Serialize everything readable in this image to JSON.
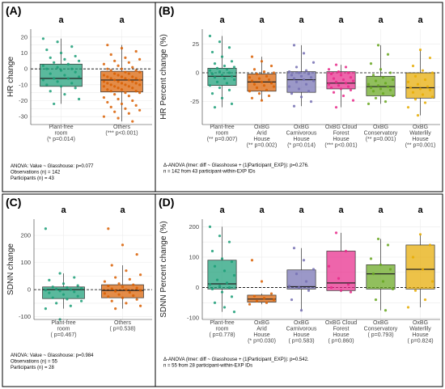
{
  "chart_data": [
    {
      "panel": "(A)",
      "type": "box",
      "ylabel": "HR change",
      "ylim": [
        -35,
        25
      ],
      "yticks": [
        -30,
        -20,
        -10,
        0,
        10,
        20
      ],
      "reference_line": 0,
      "categories": [
        {
          "name": "Plant-free room",
          "lines": [
            "Plant-free",
            "room"
          ],
          "p_label": "(* p=0.014)",
          "sig_letter": "a",
          "color": "#1b9e77",
          "q1": -11,
          "median": -6,
          "q3": 3,
          "whisker_low": -22,
          "whisker_high": 19,
          "points": [
            19,
            17,
            14,
            12,
            10,
            8,
            7,
            6,
            5,
            4,
            3,
            2,
            1,
            0,
            0,
            -1,
            -2,
            -3,
            -4,
            -5,
            -6,
            -6,
            -7,
            -8,
            -9,
            -10,
            -11,
            -12,
            -14,
            -16,
            -19,
            -22
          ]
        },
        {
          "name": "Others",
          "lines": [
            "Others"
          ],
          "p_label": "(*** p<0.001)",
          "sig_letter": "a",
          "color": "#d95f02",
          "q1": -14.5,
          "median": -7,
          "q3": -1.5,
          "whisker_low": -33,
          "whisker_high": 15,
          "points": [
            15,
            13,
            11,
            9,
            7,
            6,
            5,
            4,
            3,
            2,
            1,
            0,
            0,
            -1,
            -1,
            -2,
            -2,
            -3,
            -3,
            -4,
            -4,
            -5,
            -5,
            -5,
            -6,
            -6,
            -6,
            -7,
            -7,
            -7,
            -8,
            -8,
            -8,
            -9,
            -9,
            -9,
            -10,
            -10,
            -10,
            -11,
            -11,
            -11,
            -12,
            -12,
            -13,
            -13,
            -14,
            -14,
            -15,
            -15,
            -16,
            -17,
            -18,
            -19,
            -20,
            -21,
            -22,
            -23,
            -24,
            -25,
            -26,
            -27,
            -28,
            -30,
            -31,
            -33
          ]
        }
      ],
      "annotation": [
        "ANOVA: Value ~ Glasshouse: p=0.077",
        "Observations (n) = 142",
        "Participants (n) = 43"
      ]
    },
    {
      "panel": "(B)",
      "type": "box",
      "ylabel": "HR Percent change (%)",
      "ylim": [
        -45,
        38
      ],
      "yticks": [
        -25,
        0,
        25
      ],
      "reference_line": 0,
      "categories": [
        {
          "name": "Plant-free room",
          "lines": [
            "Plant-free",
            "room"
          ],
          "p_label": "(** p=0.007)",
          "sig_letter": "a",
          "color": "#1b9e77",
          "q1": -11,
          "median": -3,
          "q3": 4,
          "whisker_low": -30,
          "whisker_high": 32,
          "points": [
            32,
            27,
            22,
            18,
            14,
            10,
            8,
            6,
            5,
            4,
            3,
            2,
            1,
            0,
            -1,
            -2,
            -3,
            -4,
            -5,
            -6,
            -8,
            -9,
            -11,
            -13,
            -15,
            -18,
            -22,
            -27,
            -30
          ]
        },
        {
          "name": "OxBG Arid House",
          "lines": [
            "OxBG",
            "Arid",
            "House"
          ],
          "p_label": "(** p=0.002)",
          "sig_letter": "a",
          "color": "#d95f02",
          "q1": -16,
          "median": -8,
          "q3": -1,
          "whisker_low": -24,
          "whisker_high": 14,
          "points": [
            14,
            10,
            6,
            3,
            1,
            0,
            -1,
            -3,
            -4,
            -5,
            -6,
            -7,
            -8,
            -9,
            -10,
            -11,
            -12,
            -13,
            -15,
            -16,
            -18,
            -20,
            -22,
            -24
          ]
        },
        {
          "name": "OxBG Carnivorous House",
          "lines": [
            "OxBG",
            "Carnivorous",
            "House"
          ],
          "p_label": "(* p=0.014)",
          "sig_letter": "a",
          "color": "#7570b3",
          "q1": -17,
          "median": -6,
          "q3": 1,
          "whisker_low": -29,
          "whisker_high": 24,
          "points": [
            24,
            17,
            9,
            5,
            2,
            1,
            0,
            -1,
            -2,
            -3,
            -4,
            -5,
            -6,
            -7,
            -8,
            -10,
            -12,
            -14,
            -16,
            -18,
            -21,
            -25,
            -29
          ]
        },
        {
          "name": "OxBG Cloud Forest House",
          "lines": [
            "OxBG Cloud",
            "Forest",
            "House"
          ],
          "p_label": "(*** p<0.001)",
          "sig_letter": "a",
          "color": "#e7298a",
          "q1": -14,
          "median": -9,
          "q3": 1,
          "whisker_low": -30,
          "whisker_high": 7,
          "points": [
            7,
            5,
            3,
            1,
            0,
            -1,
            -2,
            -4,
            -5,
            -6,
            -7,
            -8,
            -9,
            -10,
            -11,
            -12,
            -13,
            -14,
            -15,
            -17,
            -20,
            -24,
            -30
          ]
        },
        {
          "name": "OxBG Conservatory",
          "lines": [
            "OxBG",
            "Conservatory"
          ],
          "p_label": "(** p=0.001)",
          "sig_letter": "a",
          "color": "#66a61e",
          "q1": -20,
          "median": -12,
          "q3": -3,
          "whisker_low": -27,
          "whisker_high": 24,
          "points": [
            24,
            16,
            8,
            3,
            0,
            -2,
            -4,
            -6,
            -7,
            -9,
            -10,
            -11,
            -12,
            -13,
            -14,
            -15,
            -16,
            -18,
            -20,
            -22,
            -25,
            -27
          ]
        },
        {
          "name": "OxBG Waterlily House",
          "lines": [
            "OxBG",
            "Waterlily",
            "House"
          ],
          "p_label": "(** p=0.001)",
          "sig_letter": "a",
          "color": "#e6ab02",
          "q1": -22,
          "median": -13,
          "q3": 0,
          "whisker_low": -37,
          "whisker_high": 20,
          "points": [
            20,
            13,
            6,
            2,
            0,
            -3,
            -6,
            -8,
            -10,
            -12,
            -13,
            -14,
            -15,
            -17,
            -19,
            -21,
            -23,
            -26,
            -30,
            -37
          ]
        }
      ],
      "annotation": [
        "Δ-ANOVA (lmer: diff ~ Glasshouse + (1|Participant_EXP)): p=0.276.",
        "n = 142 from 43 participant-within-EXP IDs"
      ]
    },
    {
      "panel": "(C)",
      "type": "box",
      "ylabel": "SDNN change",
      "ylim": [
        -110,
        260
      ],
      "yticks": [
        -100,
        0,
        100,
        200
      ],
      "reference_line": 0,
      "categories": [
        {
          "name": "Plant-free room",
          "lines": [
            "Plant-free",
            "room"
          ],
          "p_label": "( p=0.467)",
          "sig_letter": "a",
          "color": "#1b9e77",
          "q1": -33,
          "median": 0,
          "q3": 10,
          "whisker_low": -70,
          "whisker_high": 60,
          "points": [
            225,
            60,
            45,
            35,
            22,
            15,
            10,
            8,
            5,
            2,
            0,
            -2,
            -5,
            -8,
            -12,
            -18,
            -24,
            -30,
            -35,
            -42,
            -50,
            -60,
            -70,
            -110
          ]
        },
        {
          "name": "Others",
          "lines": [
            "Others"
          ],
          "p_label": "( p=0.538)",
          "sig_letter": "a",
          "color": "#d95f02",
          "q1": -30,
          "median": -3,
          "q3": 18,
          "whisker_low": -70,
          "whisker_high": 90,
          "points": [
            225,
            165,
            130,
            90,
            70,
            55,
            45,
            38,
            30,
            22,
            18,
            14,
            10,
            6,
            3,
            0,
            -3,
            -6,
            -10,
            -14,
            -18,
            -22,
            -26,
            -30,
            -36,
            -42,
            -50,
            -60,
            -70
          ]
        }
      ],
      "annotation": [
        "ANOVA: Value ~ Glasshouse: p=0.984",
        "Observations (n) = 55",
        "Participants (n) = 28"
      ]
    },
    {
      "panel": "(D)",
      "type": "box",
      "ylabel": "SDNN Percent change (%)",
      "ylim": [
        -105,
        225
      ],
      "yticks": [
        -100,
        0,
        100,
        200
      ],
      "reference_line": 0,
      "categories": [
        {
          "name": "Plant-free room",
          "lines": [
            "Plant-free",
            "room"
          ],
          "p_label": "( p=0.778)",
          "sig_letter": "a",
          "color": "#1b9e77",
          "q1": -5,
          "median": 12,
          "q3": 90,
          "whisker_low": -80,
          "whisker_high": 200,
          "points": [
            200,
            170,
            150,
            120,
            95,
            85,
            70,
            55,
            40,
            25,
            15,
            10,
            5,
            0,
            -5,
            -15,
            -30,
            -50,
            -65,
            -80
          ]
        },
        {
          "name": "OxBG Arid House",
          "lines": [
            "OxBG",
            "Arid",
            "House"
          ],
          "p_label": "(* p=0.030)",
          "sig_letter": "a",
          "color": "#d95f02",
          "q1": -48,
          "median": -38,
          "q3": -25,
          "whisker_low": -55,
          "whisker_high": -20,
          "points": [
            90,
            20,
            -20,
            -28,
            -35,
            -40,
            -45,
            -50,
            -55
          ]
        },
        {
          "name": "OxBG Carnivorous House",
          "lines": [
            "OxBG",
            "Carnivorous",
            "House"
          ],
          "p_label": "( p=0.583)",
          "sig_letter": "a",
          "color": "#7570b3",
          "q1": -5,
          "median": 3,
          "q3": 58,
          "whisker_low": -75,
          "whisker_high": 130,
          "points": [
            130,
            90,
            60,
            45,
            20,
            5,
            0,
            -10,
            -40,
            -75
          ]
        },
        {
          "name": "OxBG Cloud Forest House",
          "lines": [
            "OxBG Cloud",
            "Forest",
            "House"
          ],
          "p_label": "( p=0.860)",
          "sig_letter": "a",
          "color": "#e7298a",
          "q1": -10,
          "median": 15,
          "q3": 120,
          "whisker_low": -15,
          "whisker_high": 180,
          "points": [
            180,
            120,
            70,
            30,
            10,
            0,
            -10,
            -15
          ]
        },
        {
          "name": "OxBG Conservatory",
          "lines": [
            "OxBG",
            "Conservatory"
          ],
          "p_label": "( p=0.793)",
          "sig_letter": "a",
          "color": "#66a61e",
          "q1": -5,
          "median": 45,
          "q3": 75,
          "whisker_low": -75,
          "whisker_high": 160,
          "points": [
            160,
            140,
            95,
            75,
            60,
            45,
            20,
            -5,
            -40,
            -75
          ]
        },
        {
          "name": "OxBG Waterlily House",
          "lines": [
            "OxBG",
            "Waterlily",
            "House"
          ],
          "p_label": "( p=0.824)",
          "sig_letter": "a",
          "color": "#e6ab02",
          "q1": -5,
          "median": 60,
          "q3": 140,
          "whisker_low": -65,
          "whisker_high": 175,
          "points": [
            175,
            140,
            100,
            60,
            20,
            -10,
            -40,
            -65
          ]
        }
      ],
      "annotation": [
        "Δ-ANOVA (lmer: diff ~ Glasshouse + (1|Participant_EXP)): p=0.542.",
        "n = 55 from 28 participant-within-EXP IDs"
      ]
    }
  ]
}
